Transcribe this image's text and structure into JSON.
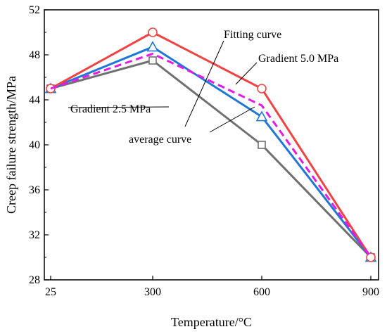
{
  "chart_data": {
    "type": "line",
    "x": [
      25,
      300,
      600,
      900
    ],
    "x_tick_labels": [
      "25",
      "300",
      "600",
      "900"
    ],
    "y_ticks": [
      28,
      32,
      36,
      40,
      44,
      48,
      52
    ],
    "ylim": [
      28,
      52
    ],
    "xlabel": "Temperature/°C",
    "ylabel": "Creep failure strength/MPa",
    "grid": false,
    "series": [
      {
        "name": "Fitting curve",
        "values": [
          45,
          50,
          45,
          30
        ],
        "color": "#ef4444",
        "marker": "circle",
        "dashed": false
      },
      {
        "name": "Gradient 5.0 MPa",
        "values": [
          45,
          48.7,
          42.5,
          30
        ],
        "color": "#1f78d4",
        "marker": "triangle",
        "dashed": false
      },
      {
        "name": "Gradient 2.5 MPa",
        "values": [
          45,
          47.5,
          40,
          30
        ],
        "color": "#707070",
        "marker": "square",
        "dashed": false
      },
      {
        "name": "average curve",
        "values": [
          45,
          48.1,
          43.5,
          30
        ],
        "color": "#e619e6",
        "marker": "none",
        "dashed": true
      }
    ]
  }
}
